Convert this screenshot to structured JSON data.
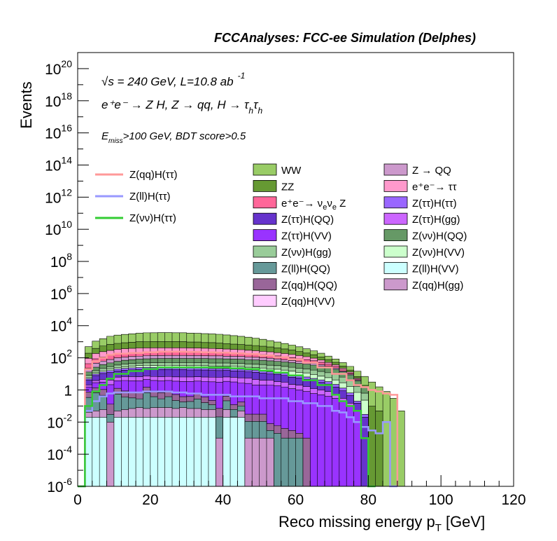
{
  "chart_data": {
    "type": "area",
    "title": "FCCAnalyses: FCC-ee Simulation (Delphes)",
    "xlabel": "Reco missing energy p",
    "xlabel_sub": "T",
    "xlabel_unit": "[GeV]",
    "ylabel": "Events",
    "xlim": [
      0,
      120
    ],
    "ylim": [
      1e-06,
      1e+21
    ],
    "yscale": "log",
    "grid": false,
    "x_ticks": [
      "0",
      "20",
      "40",
      "60",
      "80",
      "100",
      "120"
    ],
    "y_ticks": [
      {
        "base": "10",
        "exp": "-6"
      },
      {
        "base": "10",
        "exp": "-4"
      },
      {
        "base": "10",
        "exp": "-2"
      },
      {
        "base": "1",
        "exp": ""
      },
      {
        "base": "10",
        "exp": "2"
      },
      {
        "base": "10",
        "exp": "4"
      },
      {
        "base": "10",
        "exp": "6"
      },
      {
        "base": "10",
        "exp": "8"
      },
      {
        "base": "10",
        "exp": "10"
      },
      {
        "base": "10",
        "exp": "12"
      },
      {
        "base": "10",
        "exp": "14"
      },
      {
        "base": "10",
        "exp": "16"
      },
      {
        "base": "10",
        "exp": "18"
      },
      {
        "base": "10",
        "exp": "20"
      }
    ],
    "annotations": {
      "line1": "√s = 240 GeV, L=10.8 ab",
      "line1_sup": "-1",
      "line2": "e⁺e⁻ → Z H, Z → qq, H → τ",
      "line2_sub1": "h",
      "line2_mid": "τ",
      "line2_sub2": "h",
      "line3_a": "E",
      "line3_sub": "miss",
      "line3_b": ">100 GeV, BDT score>0.5"
    },
    "bin_edges_x": [
      0,
      2,
      4,
      6,
      8,
      10,
      12,
      14,
      16,
      18,
      20,
      22,
      24,
      26,
      28,
      30,
      32,
      34,
      36,
      38,
      40,
      42,
      44,
      46,
      48,
      50,
      52,
      54,
      56,
      58,
      60,
      62,
      64,
      66,
      68,
      70,
      72,
      74,
      76,
      78,
      80,
      82,
      84,
      86,
      88,
      90,
      92
    ],
    "stack": [
      {
        "name": "Z(ll)H(VV)",
        "color": "#ccffff",
        "values": [
          0,
          0.02,
          0.02,
          0.02,
          0,
          0.02,
          0.02,
          0.02,
          0.02,
          0.02,
          0.02,
          0.02,
          0.02,
          0.02,
          0.02,
          0.02,
          0.02,
          0.02,
          0.02,
          0,
          0.02,
          0.02,
          0.02,
          0,
          0,
          0,
          0,
          0,
          0,
          0,
          0,
          0,
          0,
          0,
          0,
          0,
          0,
          0,
          0,
          0,
          0,
          0,
          0,
          0,
          0,
          0
        ]
      },
      {
        "name": "Z(qq)H(gg)",
        "color": "#cc99cc",
        "values": [
          0,
          0.02,
          0.03,
          0.04,
          0.01,
          0.03,
          0.04,
          0.05,
          0.06,
          0.05,
          0.06,
          0.06,
          0.06,
          0.05,
          0.06,
          0.05,
          0.05,
          0.04,
          0.04,
          0.001,
          0.04,
          0.001,
          0.03,
          0.001,
          0.001,
          0.001,
          0.001,
          0,
          0,
          0,
          0,
          0,
          0,
          0,
          0,
          0,
          0,
          0,
          0,
          0,
          0,
          0,
          0,
          0,
          0,
          0
        ]
      },
      {
        "name": "Z(ll)H(QQ)",
        "color": "#669999",
        "values": [
          0,
          0.3,
          0.6,
          0.4,
          0.02,
          0.5,
          0.3,
          0.25,
          0.2,
          0.6,
          0.3,
          0.2,
          0.3,
          0.15,
          0.1,
          0.12,
          0.2,
          0.1,
          0.06,
          0.02,
          0.15,
          0.04,
          0.05,
          0.01,
          0.01,
          0.01,
          0.002,
          0.002,
          0.001,
          0.001,
          0.001,
          0,
          0,
          0,
          0,
          0,
          0,
          0,
          0,
          0,
          0,
          0,
          0,
          0,
          0,
          0
        ]
      },
      {
        "name": "Z(qq)H(QQ)",
        "color": "#996699",
        "values": [
          0,
          0.4,
          0.7,
          0.6,
          0.1,
          0.7,
          0.5,
          0.4,
          0.4,
          0.8,
          0.5,
          0.4,
          0.5,
          0.3,
          0.2,
          0.2,
          0.3,
          0.2,
          0.1,
          0.05,
          0.2,
          0.06,
          0.08,
          0.02,
          0.02,
          0.02,
          0.005,
          0.004,
          0.003,
          0.002,
          0.001,
          0.001,
          0,
          0,
          0,
          0,
          0,
          0,
          0,
          0,
          0,
          0,
          0,
          0,
          0,
          0
        ]
      },
      {
        "name": "Z(ττ)H(VV)",
        "color": "#9933ff",
        "values": [
          0,
          0.8,
          1.5,
          2,
          2,
          2.5,
          3,
          3,
          3,
          3,
          3,
          3,
          3,
          3,
          3,
          3,
          3,
          3,
          3,
          3,
          3,
          3,
          2.5,
          2.5,
          2,
          2,
          2,
          1.8,
          1.5,
          1.2,
          1,
          0.8,
          0.6,
          0.5,
          0.4,
          0.3,
          0.2,
          0.1,
          0.05,
          0,
          0,
          0,
          0,
          0,
          0,
          0
        ]
      },
      {
        "name": "Z(ττ)H(gg)",
        "color": "#cc66ff",
        "values": [
          0,
          0.5,
          1,
          1.5,
          2,
          2.5,
          3,
          3,
          3,
          3,
          3,
          3,
          3,
          3,
          3,
          3,
          3,
          3,
          3,
          3,
          3,
          3,
          3,
          3,
          2.5,
          2,
          2,
          1.5,
          1.5,
          1,
          1,
          0.8,
          0.6,
          0.5,
          0.4,
          0.2,
          0.1,
          0.05,
          0,
          0,
          0,
          0,
          0,
          0,
          0,
          0
        ]
      },
      {
        "name": "Z(ττ)H(QQ)",
        "color": "#6633cc",
        "values": [
          0,
          2,
          4,
          6,
          8,
          9,
          10,
          11,
          12,
          12,
          12,
          12,
          12,
          12,
          12,
          11,
          11,
          11,
          10,
          10,
          10,
          9,
          9,
          8,
          8,
          7,
          6,
          6,
          5,
          4,
          3.5,
          3,
          2.5,
          2,
          1.5,
          1,
          0.6,
          0.3,
          0.1,
          0.02,
          0,
          0,
          0,
          0,
          0,
          0
        ]
      },
      {
        "name": "Z(ττ)H(ττ)",
        "color": "#9966ff",
        "values": [
          0,
          1,
          2,
          3,
          4,
          5,
          5,
          6,
          6,
          6,
          6,
          6,
          6,
          6,
          6,
          6,
          6,
          6,
          5,
          5,
          5,
          5,
          5,
          4,
          4,
          4,
          3.5,
          3,
          3,
          2.5,
          2,
          1.8,
          1.5,
          1.2,
          1,
          0.7,
          0.4,
          0.2,
          0.05,
          0.01,
          0,
          0,
          0,
          0,
          0,
          0
        ]
      },
      {
        "name": "Z(νν)H(VV)",
        "color": "#ccffcc",
        "values": [
          0,
          1,
          2,
          3,
          4,
          5,
          6,
          7,
          8,
          8,
          8,
          9,
          9,
          9,
          9,
          9,
          9,
          9,
          9,
          9,
          9,
          9,
          9,
          8,
          8,
          8,
          7,
          7,
          6,
          6,
          5,
          5,
          4,
          3,
          2.5,
          2,
          1.5,
          1,
          0.5,
          0.2,
          0,
          0,
          0,
          0,
          0,
          0
        ]
      },
      {
        "name": "Z(νν)H(gg)",
        "color": "#99cc99",
        "values": [
          0,
          2,
          4,
          6,
          8,
          10,
          12,
          13,
          14,
          15,
          16,
          16,
          17,
          17,
          17,
          17,
          17,
          17,
          17,
          17,
          17,
          16,
          16,
          16,
          15,
          15,
          14,
          13,
          12,
          11,
          10,
          9,
          8,
          7,
          6,
          5,
          3.5,
          2,
          1,
          0.4,
          0,
          0,
          0,
          0,
          0,
          0
        ]
      },
      {
        "name": "Z(νν)H(QQ)",
        "color": "#669966",
        "values": [
          0,
          5,
          10,
          15,
          20,
          25,
          30,
          32,
          35,
          38,
          40,
          40,
          40,
          40,
          40,
          40,
          40,
          40,
          40,
          40,
          38,
          38,
          36,
          35,
          34,
          32,
          30,
          28,
          26,
          24,
          22,
          20,
          18,
          15,
          12,
          10,
          7,
          5,
          2,
          0.8,
          0,
          0,
          0,
          0,
          0,
          0
        ]
      },
      {
        "name": "Z → QQ",
        "color": "#cc99cc",
        "values": [
          0,
          10,
          20,
          25,
          30,
          40,
          40,
          45,
          45,
          50,
          50,
          50,
          50,
          50,
          50,
          50,
          50,
          45,
          45,
          45,
          40,
          40,
          40,
          35,
          35,
          30,
          30,
          25,
          20,
          18,
          15,
          12,
          10,
          8,
          6,
          4,
          2,
          1,
          0.5,
          0,
          0,
          0,
          0,
          0,
          0,
          0
        ]
      },
      {
        "name": "e⁺e⁻→ ν_eν_e Z",
        "color": "#ff6699",
        "values": [
          0,
          20,
          40,
          50,
          60,
          70,
          80,
          80,
          80,
          80,
          80,
          80,
          80,
          80,
          80,
          80,
          80,
          80,
          80,
          75,
          75,
          70,
          70,
          65,
          60,
          55,
          50,
          45,
          40,
          35,
          30,
          25,
          20,
          15,
          10,
          6,
          3,
          1.5,
          0.5,
          0,
          0,
          0,
          0,
          0,
          0,
          0
        ]
      },
      {
        "name": "e⁺e⁻→ ττ",
        "color": "#ff99cc",
        "values": [
          0,
          50,
          100,
          130,
          150,
          170,
          180,
          190,
          200,
          200,
          200,
          200,
          200,
          200,
          200,
          190,
          190,
          180,
          170,
          160,
          150,
          140,
          130,
          120,
          110,
          100,
          90,
          80,
          70,
          60,
          50,
          40,
          30,
          20,
          12,
          8,
          4,
          2,
          0.6,
          0,
          0,
          0,
          0,
          0,
          0,
          0
        ]
      },
      {
        "name": "ZZ",
        "color": "#669933",
        "values": [
          0,
          100,
          200,
          300,
          400,
          450,
          500,
          550,
          600,
          600,
          600,
          600,
          600,
          600,
          600,
          550,
          550,
          500,
          500,
          450,
          400,
          380,
          350,
          320,
          300,
          270,
          240,
          200,
          170,
          140,
          110,
          80,
          60,
          40,
          25,
          15,
          8,
          4,
          1.5,
          0.5,
          0.1,
          0.05,
          0,
          0,
          0,
          0
        ]
      },
      {
        "name": "WW",
        "color": "#99cc66",
        "values": [
          0,
          300,
          700,
          1000,
          1500,
          1800,
          2000,
          2200,
          2400,
          2600,
          2600,
          2700,
          2700,
          2600,
          2600,
          2500,
          2400,
          2300,
          2200,
          2100,
          1900,
          1700,
          1500,
          1300,
          1100,
          900,
          700,
          550,
          420,
          320,
          240,
          170,
          120,
          80,
          50,
          32,
          20,
          12,
          8,
          5,
          3,
          1.5,
          0.8,
          0.3,
          0.05,
          0
        ]
      }
    ],
    "signals": [
      {
        "name": "Z(qq)H(ττ)",
        "color": "#ff9999",
        "x": [
          0,
          2,
          4,
          6,
          8,
          10,
          14,
          18,
          22,
          26,
          30,
          34,
          38,
          42,
          46,
          50,
          54,
          58,
          62,
          66,
          70,
          74,
          76,
          78,
          80,
          82,
          84,
          86,
          88
        ],
        "y": [
          1e-06,
          20,
          60,
          100,
          150,
          180,
          200,
          220,
          240,
          240,
          230,
          220,
          210,
          190,
          170,
          140,
          110,
          80,
          50,
          25,
          10,
          4,
          2,
          1.5,
          1,
          0.8,
          0.6,
          0.5,
          1e-06
        ]
      },
      {
        "name": "Z(ll)H(ττ)",
        "color": "#9999ff",
        "x": [
          0,
          2,
          4,
          6,
          8,
          10,
          14,
          18,
          22,
          26,
          30,
          34,
          38,
          42,
          46,
          50,
          54,
          58,
          62,
          66,
          70,
          72,
          74,
          76,
          78,
          80,
          82,
          84,
          86,
          88
        ],
        "y": [
          1e-06,
          0.05,
          0.2,
          0.4,
          0.6,
          0.7,
          0.7,
          0.8,
          0.8,
          0.7,
          0.6,
          0.5,
          0.5,
          0.4,
          0.4,
          0.3,
          0.3,
          0.2,
          0.15,
          0.1,
          0.05,
          0.04,
          0.02,
          0.01,
          0.005,
          0.003,
          0.002,
          0.01,
          1e-06,
          1e-06
        ]
      },
      {
        "name": "Z(νν)H(ττ)",
        "color": "#33cc33",
        "x": [
          0,
          2,
          4,
          6,
          8,
          10,
          14,
          18,
          22,
          26,
          30,
          34,
          38,
          42,
          46,
          50,
          54,
          58,
          62,
          66,
          70,
          72,
          74,
          76,
          78,
          80,
          82
        ],
        "y": [
          1e-06,
          0.1,
          0.8,
          2,
          5,
          10,
          15,
          20,
          25,
          25,
          25,
          25,
          25,
          22,
          20,
          16,
          12,
          8,
          4,
          2,
          0.5,
          0.2,
          0.1,
          0.05,
          0.001,
          1e-06,
          1e-06
        ]
      }
    ],
    "legend_left": [
      "Z(qq)H(ττ)",
      "Z(ll)H(ττ)",
      "Z(νν)H(ττ)"
    ],
    "legend_col1": [
      "WW",
      "ZZ",
      "e⁺e⁻→ ν_eν_e Z",
      "Z(ττ)H(QQ)",
      "Z(ττ)H(VV)",
      "Z(νν)H(gg)",
      "Z(ll)H(QQ)",
      "Z(qq)H(QQ)",
      "Z(qq)H(VV)"
    ],
    "legend_col1_colors": [
      "#99cc66",
      "#669933",
      "#ff6699",
      "#6633cc",
      "#9933ff",
      "#99cc99",
      "#669999",
      "#996699",
      "#ffccff"
    ],
    "legend_col2": [
      "Z → QQ",
      "e⁺e⁻→ ττ",
      "Z(ττ)H(ττ)",
      "Z(ττ)H(gg)",
      "Z(νν)H(QQ)",
      "Z(νν)H(VV)",
      "Z(ll)H(VV)",
      "Z(qq)H(gg)"
    ],
    "legend_col2_colors": [
      "#cc99cc",
      "#ff99cc",
      "#9966ff",
      "#cc66ff",
      "#669966",
      "#ccffcc",
      "#ccffff",
      "#cc99cc"
    ]
  }
}
